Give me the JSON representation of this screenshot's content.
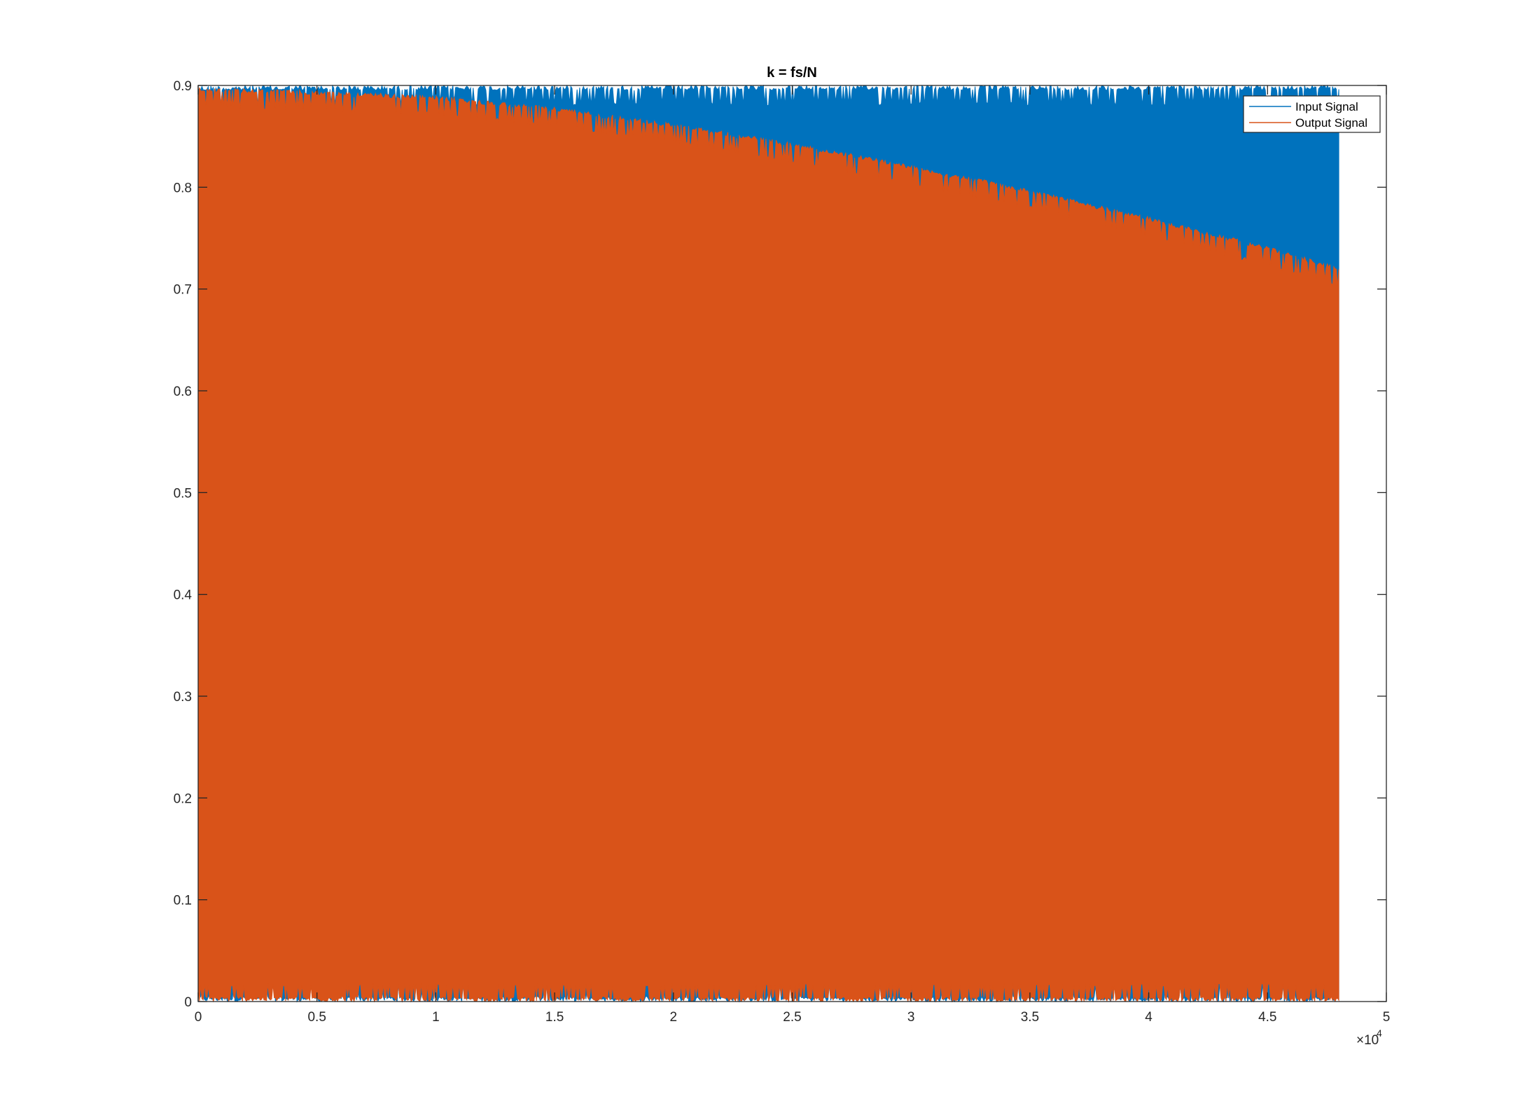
{
  "chart_data": {
    "type": "area",
    "title": "k = fs/N",
    "xlabel": "",
    "ylabel": "",
    "xlim": [
      0,
      50000
    ],
    "ylim": [
      0,
      0.9
    ],
    "x_ticks": [
      0,
      5000,
      10000,
      15000,
      20000,
      25000,
      30000,
      35000,
      40000,
      45000,
      50000
    ],
    "x_tick_labels": [
      "0",
      "0.5",
      "1",
      "1.5",
      "2",
      "2.5",
      "3",
      "3.5",
      "4",
      "4.5",
      "5"
    ],
    "x_exponent_label": "×10",
    "x_exponent_power": "4",
    "y_ticks": [
      0,
      0.1,
      0.2,
      0.3,
      0.4,
      0.5,
      0.6,
      0.7,
      0.8,
      0.9
    ],
    "y_tick_labels": [
      "0",
      "0.1",
      "0.2",
      "0.3",
      "0.4",
      "0.5",
      "0.6",
      "0.7",
      "0.8",
      "0.9"
    ],
    "grid": false,
    "legend_position": "top-right",
    "series": [
      {
        "name": "Input Signal",
        "color": "#0072BD",
        "x": [
          0,
          48000
        ],
        "upper_envelope": [
          0.9,
          0.9
        ],
        "lower_envelope": [
          0.0,
          0.0
        ]
      },
      {
        "name": "Output Signal",
        "color": "#D95319",
        "x": [
          0,
          5000,
          10000,
          15000,
          20000,
          25000,
          30000,
          35000,
          40000,
          45000,
          48000
        ],
        "upper_envelope": [
          0.898,
          0.895,
          0.89,
          0.879,
          0.863,
          0.844,
          0.822,
          0.798,
          0.771,
          0.742,
          0.722
        ],
        "lower_envelope": [
          0.0,
          0.0,
          0.0,
          0.0,
          0.0,
          0.0,
          0.0,
          0.0,
          0.0,
          0.0,
          0.0
        ]
      }
    ]
  }
}
